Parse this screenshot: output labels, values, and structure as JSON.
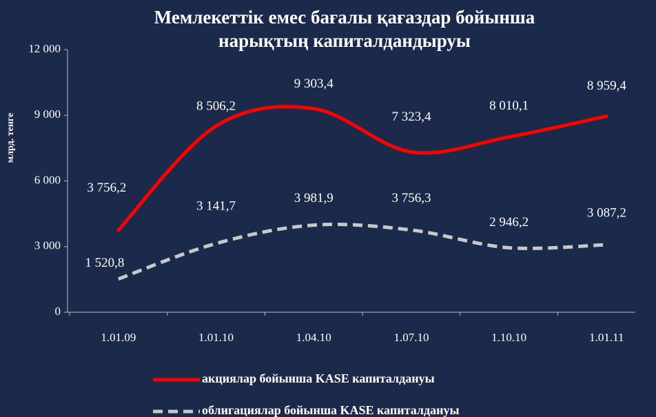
{
  "chart_data": {
    "type": "line",
    "title": [
      "Мемлекеттік емес бағалы қағаздар бойынша",
      "нарықтың капиталдандыруы"
    ],
    "y_label": "млрд. тенге",
    "categories": [
      "1.01.09",
      "1.01.10",
      "1.04.10",
      "1.07.10",
      "1.10.10",
      "1.01.11"
    ],
    "series": [
      {
        "name": "акциялар бойынша  KASE капиталдануы",
        "color": "#ff0000",
        "dash": false,
        "values": [
          3756.2,
          8506.2,
          9303.4,
          7323.4,
          8010.1,
          8959.4
        ],
        "value_labels": [
          "3 756,2",
          "8 506,2",
          "9 303,4",
          "7 323,4",
          "8 010,1",
          "8 959,4"
        ]
      },
      {
        "name": "облигациялар бойынша KASE капиталдануы",
        "color": "#c8c8c8",
        "dash": true,
        "values": [
          1520.8,
          3141.7,
          3981.9,
          3756.3,
          2946.2,
          3087.2
        ],
        "value_labels": [
          "1 520,8",
          "3 141,7",
          "3 981,9",
          "3 756,3",
          "2 946,2",
          "3 087,2"
        ]
      }
    ],
    "ylim": [
      0,
      12000
    ],
    "yticks": [
      0,
      {
        "value": 3000,
        "label": "3 000"
      },
      {
        "value": 6000,
        "label": "6 000"
      },
      {
        "value": 9000,
        "label": "9 000"
      },
      {
        "value": 12000,
        "label": "12 000"
      }
    ],
    "smooth": true
  }
}
